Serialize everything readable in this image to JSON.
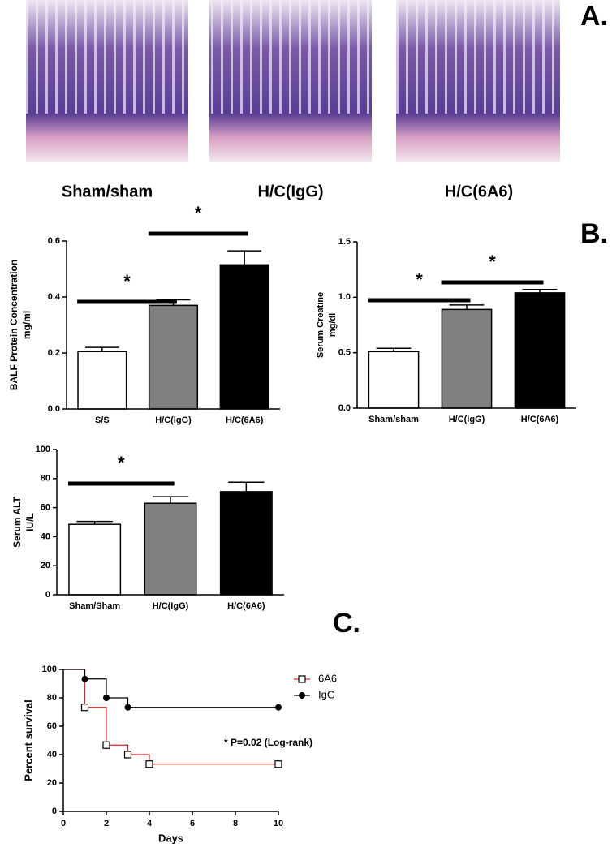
{
  "figure": {
    "panel_labels": [
      "A.",
      "B.",
      "C."
    ],
    "image_captions": [
      "Sham/sham",
      "H/C(IgG)",
      "H/C(6A6)"
    ]
  },
  "chart_data": [
    {
      "type": "bar",
      "ylabel": [
        "BALF Protein Concentration",
        "mg/ml"
      ],
      "categories": [
        "S/S",
        "H/C(IgG)",
        "H/C(6A6)"
      ],
      "values": [
        0.205,
        0.37,
        0.515
      ],
      "errors": [
        0.015,
        0.02,
        0.05
      ],
      "colors": [
        "#ffffff",
        "#808080",
        "#000000"
      ],
      "ylim": [
        0,
        0.6
      ],
      "yticks": [
        {
          "value": 0,
          "label": "0.0"
        },
        0.2,
        0.4,
        0.6
      ],
      "annotations": [
        {
          "text": "*",
          "from": 0,
          "to": 1
        },
        {
          "text": "*",
          "from": 1,
          "to": 2
        }
      ]
    },
    {
      "type": "bar",
      "ylabel": [
        "Serum Creatine",
        "mg/dl"
      ],
      "categories": [
        "Sham/sham",
        "H/C(IgG)",
        "H/C(6A6)"
      ],
      "values": [
        0.51,
        0.89,
        1.04
      ],
      "errors": [
        0.03,
        0.04,
        0.03
      ],
      "colors": [
        "#ffffff",
        "#808080",
        "#000000"
      ],
      "ylim": [
        0,
        1.5
      ],
      "yticks": [
        {
          "value": 0,
          "label": "0.0"
        },
        0.5,
        {
          "value": 1,
          "label": "1.0"
        },
        1.5
      ],
      "annotations": [
        {
          "text": "*",
          "from": 0,
          "to": 1
        },
        {
          "text": "*",
          "from": 1,
          "to": 2
        }
      ]
    },
    {
      "type": "bar",
      "ylabel": [
        "Serum ALT",
        "IU/L"
      ],
      "categories": [
        "Sham/Sham",
        "H/C(IgG)",
        "H/C(6A6)"
      ],
      "values": [
        48.5,
        63,
        71
      ],
      "errors": [
        2,
        4.5,
        6.5
      ],
      "colors": [
        "#ffffff",
        "#808080",
        "#000000"
      ],
      "ylim": [
        0,
        100
      ],
      "yticks": [
        0,
        20,
        40,
        60,
        80,
        100
      ],
      "annotations": [
        {
          "text": "*",
          "from": 0,
          "to": 1
        }
      ]
    },
    {
      "type": "step",
      "xlabel": "Days",
      "ylabel": "Percent survival",
      "annotation": "* P=0.02 (Log-rank)",
      "xlim": [
        0,
        10
      ],
      "xticks": [
        0,
        2,
        4,
        6,
        8,
        10
      ],
      "ylim": [
        0,
        100
      ],
      "yticks": [
        0,
        20,
        40,
        60,
        80,
        100
      ],
      "series": [
        {
          "name": "6A6",
          "color": "#e0231c",
          "marker": "square",
          "x": [
            0,
            1,
            2,
            3,
            4,
            10
          ],
          "values": [
            100,
            73.3,
            46.7,
            40,
            33.3,
            33.3
          ]
        },
        {
          "name": "IgG",
          "color": "#000000",
          "marker": "circle",
          "x": [
            0,
            1,
            2,
            3,
            10
          ],
          "values": [
            100,
            93.3,
            80,
            73.3,
            73.3
          ]
        }
      ]
    }
  ]
}
